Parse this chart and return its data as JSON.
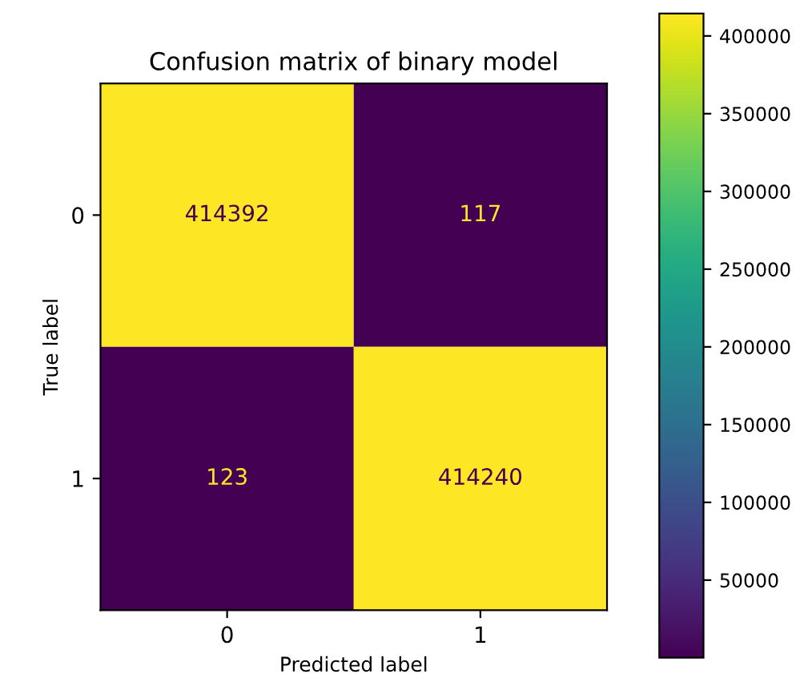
{
  "chart_data": {
    "type": "heatmap",
    "title": "Confusion matrix of binary model",
    "xlabel": "Predicted label",
    "ylabel": "True label",
    "categories": [
      "0",
      "1"
    ],
    "y_categories": [
      "0",
      "1"
    ],
    "cells": [
      [
        414392,
        117
      ],
      [
        123,
        414240
      ]
    ],
    "data_labels": true,
    "clim": [
      117,
      414392
    ],
    "cticks": [
      50000,
      100000,
      150000,
      200000,
      250000,
      300000,
      350000,
      400000
    ]
  }
}
